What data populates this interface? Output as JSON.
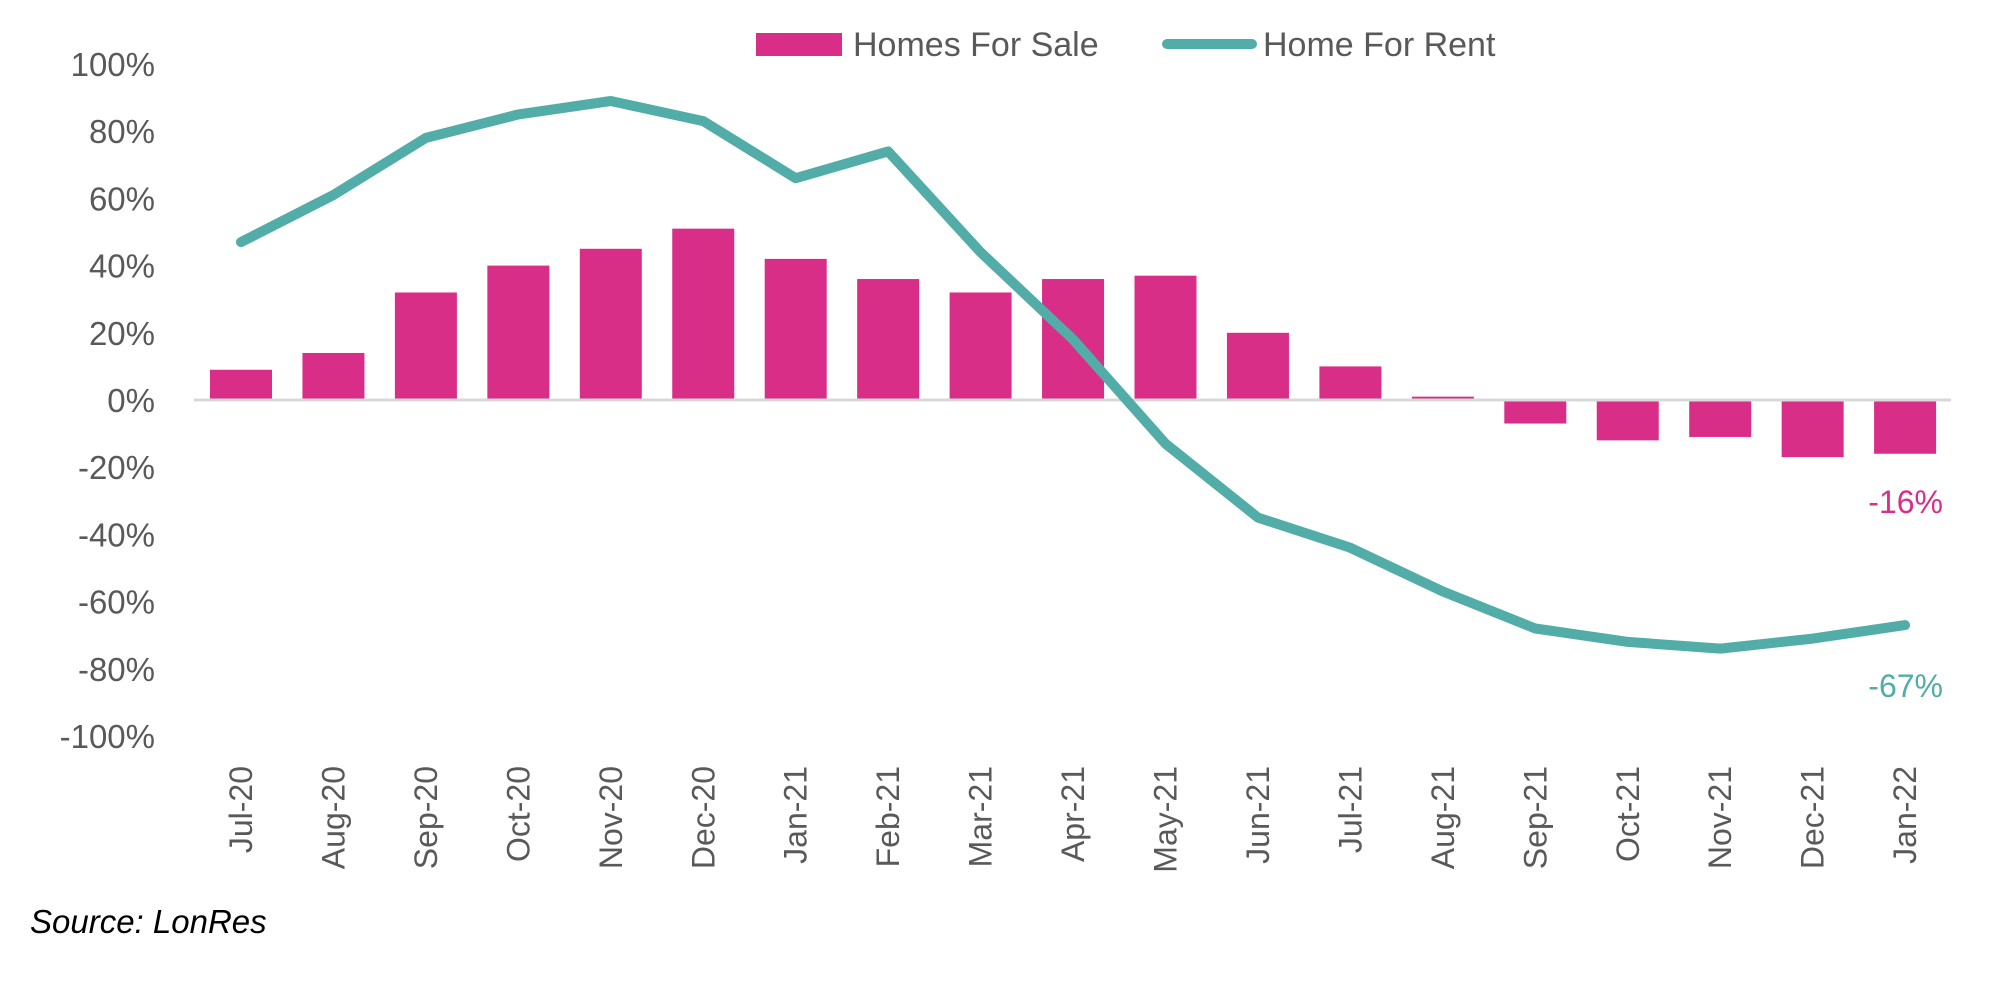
{
  "chart_data": {
    "type": "bar",
    "title": "",
    "xlabel": "",
    "ylabel": "",
    "ylim": [
      -100,
      100
    ],
    "yticks": [
      100,
      80,
      60,
      40,
      20,
      0,
      -20,
      -40,
      -60,
      -80,
      -100
    ],
    "ytick_labels": [
      "100%",
      "80%",
      "60%",
      "40%",
      "20%",
      "0%",
      "-20%",
      "-40%",
      "-60%",
      "-80%",
      "-100%"
    ],
    "grid": false,
    "legend_position": "top-center",
    "categories": [
      "Jul-20",
      "Aug-20",
      "Sep-20",
      "Oct-20",
      "Nov-20",
      "Dec-20",
      "Jan-21",
      "Feb-21",
      "Mar-21",
      "Apr-21",
      "May-21",
      "Jun-21",
      "Jul-21",
      "Aug-21",
      "Sep-21",
      "Oct-21",
      "Nov-21",
      "Dec-21",
      "Jan-22"
    ],
    "series": [
      {
        "name": "Homes For Sale",
        "type": "bar",
        "color": "#D82E88",
        "values": [
          9,
          14,
          32,
          40,
          45,
          51,
          42,
          36,
          32,
          36,
          37,
          20,
          10,
          1,
          -7,
          -12,
          -11,
          -17,
          -16
        ]
      },
      {
        "name": "Home For Rent",
        "type": "line",
        "color": "#52ACA8",
        "values": [
          47,
          61,
          78,
          85,
          89,
          83,
          66,
          74,
          44,
          18,
          -13,
          -35,
          -44,
          -57,
          -68,
          -72,
          -74,
          -71,
          -67
        ]
      }
    ],
    "annotations": [
      {
        "text": "-16%",
        "series": "Homes For Sale",
        "category": "Jan-22",
        "color": "#D82E88"
      },
      {
        "text": "-67%",
        "series": "Home For Rent",
        "category": "Jan-22",
        "color": "#52ACA8"
      }
    ]
  },
  "legend": {
    "sale_label": "Homes For Sale",
    "rent_label": "Home For Rent"
  },
  "source": "Source: LonRes",
  "colors": {
    "sale": "#D82E88",
    "rent": "#52ACA8",
    "axis": "#D9D9D9",
    "tick_text": "#595959"
  }
}
